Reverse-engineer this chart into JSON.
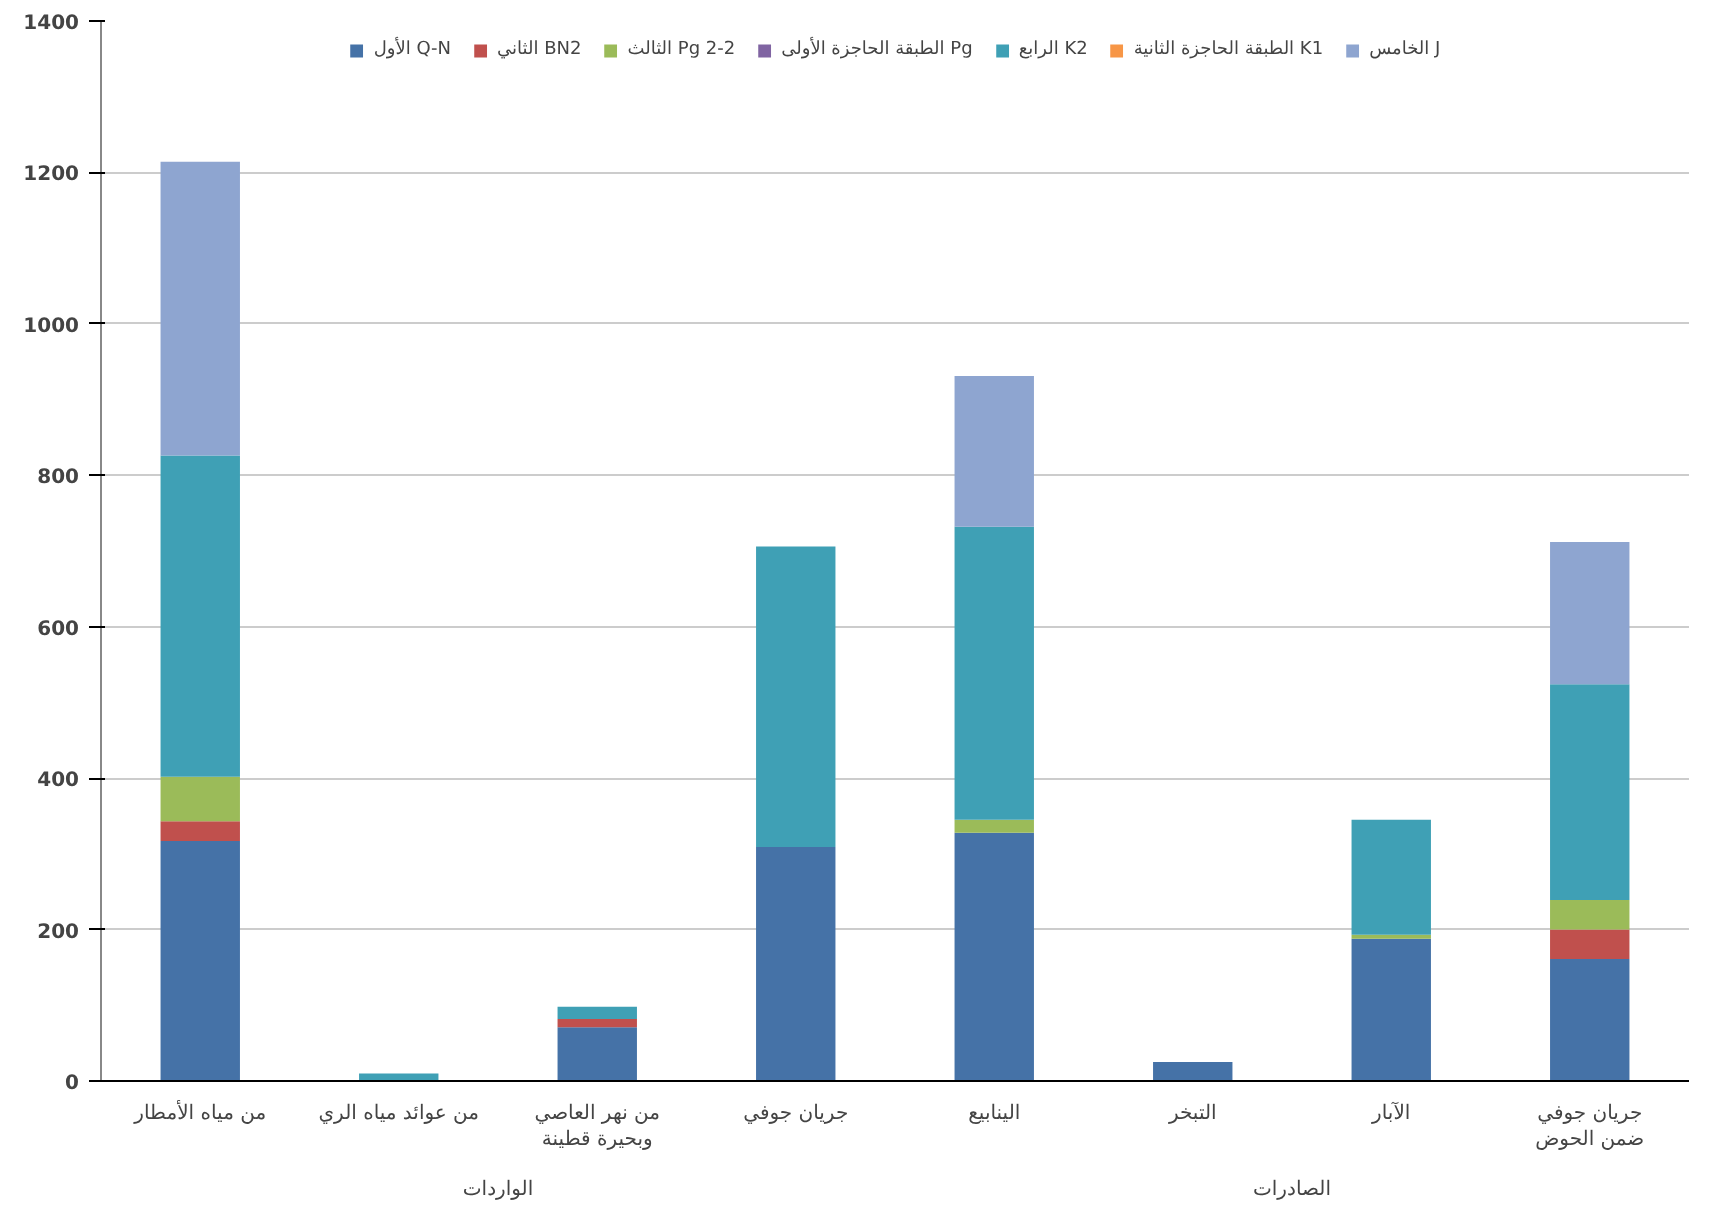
{
  "chart_data": {
    "type": "bar",
    "stacked": true,
    "categories": [
      "من مياه الأمطار",
      "من عوائد مياه الري",
      "من نهر العاصي وبحيرة قطينة",
      "جريان جوفي",
      "الينابيع",
      "التبخر",
      "الآبار",
      "جريان جوفي ضمن الحوض"
    ],
    "series": [
      {
        "name": "الأول Q-N",
        "color": "#4572a7",
        "values": [
          317,
          0,
          71,
          309,
          328,
          25,
          188,
          161
        ]
      },
      {
        "name": "الثاني BN2",
        "color": "#c0504d",
        "values": [
          26,
          0,
          11,
          0,
          0,
          0,
          0,
          39
        ]
      },
      {
        "name": "الثالث Pg 2-2",
        "color": "#9bbb59",
        "values": [
          59,
          null,
          0,
          0,
          17,
          0,
          5,
          39
        ]
      },
      {
        "name": "الطبقة الحاجزة الأولى Pg",
        "color": "#8064a2",
        "values": [
          0,
          0,
          0,
          0,
          0,
          0,
          0,
          0
        ]
      },
      {
        "name": "الرابع K2",
        "color": "#3fa0b5",
        "values": [
          424,
          10,
          16,
          397,
          387,
          0,
          152,
          285
        ]
      },
      {
        "name": "الطبقة الحاجزة الثانية K1",
        "color": "#f79646",
        "values": [
          0,
          0,
          0,
          0,
          0,
          0,
          0,
          0
        ]
      },
      {
        "name": "الخامس J",
        "color": "#8ea5d0",
        "values": [
          388,
          0,
          0,
          0,
          199,
          0,
          0,
          188
        ]
      }
    ],
    "ylim": [
      0,
      1400
    ],
    "yticks": [
      0,
      200,
      400,
      600,
      800,
      1000,
      1200,
      1400
    ],
    "grid": "y",
    "legend": "top",
    "annotations": [
      "الواردات",
      "الصادرات"
    ]
  }
}
